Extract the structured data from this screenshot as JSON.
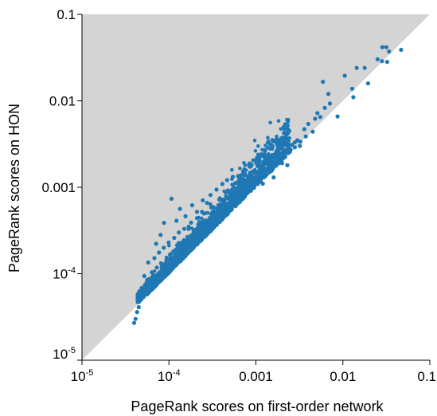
{
  "chart_data": {
    "type": "scatter",
    "xlabel": "PageRank scores on first-order network",
    "ylabel": "PageRank scores on HON",
    "xscale": "log",
    "yscale": "log",
    "xlim": [
      1e-05,
      0.1
    ],
    "ylim": [
      1e-05,
      0.1
    ],
    "grid": false,
    "legend": "none",
    "shaded_region": "y > x (upper-left triangle)",
    "colors": {
      "points": "#1f78b4",
      "shaded_region": "#d4d4d4",
      "axis": "#000000"
    },
    "x_ticks": [
      {
        "value": 1e-05,
        "base": "10",
        "exp": "-5"
      },
      {
        "value": 0.0001,
        "base": "10",
        "exp": "-4"
      },
      {
        "value": 0.001,
        "base": "0.001",
        "exp": ""
      },
      {
        "value": 0.01,
        "base": "0.01",
        "exp": ""
      },
      {
        "value": 0.1,
        "base": "0.1",
        "exp": ""
      }
    ],
    "y_ticks": [
      {
        "value": 1e-05,
        "base": "10",
        "exp": "-5"
      },
      {
        "value": 0.0001,
        "base": "10",
        "exp": "-4"
      },
      {
        "value": 0.001,
        "base": "0.001",
        "exp": ""
      },
      {
        "value": 0.01,
        "base": "0.01",
        "exp": ""
      },
      {
        "value": 0.1,
        "base": "0.1",
        "exp": ""
      }
    ],
    "points": [
      [
        0.0284,
        0.0417
      ],
      [
        0.0316,
        0.0417
      ],
      [
        0.0467,
        0.0389
      ],
      [
        0.0339,
        0.0372
      ],
      [
        0.0251,
        0.0302
      ],
      [
        0.0282,
        0.0288
      ],
      [
        0.0323,
        0.0282
      ],
      [
        0.0144,
        0.024
      ],
      [
        0.0178,
        0.024
      ],
      [
        0.0195,
        0.0159
      ],
      [
        0.0105,
        0.0195
      ],
      [
        0.0128,
        0.0138
      ],
      [
        0.0132,
        0.011
      ],
      [
        0.0059,
        0.0166
      ],
      [
        0.0068,
        0.012
      ],
      [
        0.0071,
        0.0093
      ],
      [
        0.0062,
        0.0083
      ],
      [
        0.0051,
        0.0072
      ],
      [
        0.0055,
        0.0065
      ],
      [
        0.0048,
        0.0062
      ],
      [
        0.004,
        0.0054
      ],
      [
        0.0045,
        0.0044
      ],
      [
        0.0087,
        0.0066
      ],
      [
        0.0036,
        0.0047
      ],
      [
        0.003,
        0.0035
      ],
      [
        0.0028,
        0.0033
      ],
      [
        0.0032,
        0.003
      ],
      [
        0.0026,
        0.0031
      ],
      [
        0.0025,
        0.0027
      ],
      [
        0.0022,
        0.0025
      ],
      [
        0.0019,
        0.0028
      ],
      [
        0.0021,
        0.0022
      ],
      [
        0.002,
        0.0019
      ],
      [
        0.0017,
        0.0021
      ],
      [
        0.0023,
        0.0018
      ],
      [
        0.0015,
        0.0016
      ],
      [
        0.0014,
        0.002
      ],
      [
        0.0016,
        0.0013
      ],
      [
        0.0012,
        0.0015
      ],
      [
        0.0011,
        0.0014
      ],
      [
        0.0012,
        0.0011
      ],
      [
        0.00101,
        0.00115
      ],
      [
        0.00096,
        0.00148
      ],
      [
        0.00088,
        0.00102
      ],
      [
        0.00082,
        0.00093
      ],
      [
        0.00079,
        0.00123
      ],
      [
        0.00071,
        0.00098
      ],
      [
        0.00065,
        0.00081
      ],
      [
        0.00061,
        0.00074
      ],
      [
        0.00058,
        0.00112
      ],
      [
        0.00053,
        0.00069
      ],
      [
        0.00049,
        0.00087
      ],
      [
        0.00045,
        0.00063
      ],
      [
        0.00042,
        0.00056
      ],
      [
        0.00038,
        0.00072
      ],
      [
        0.00035,
        0.00051
      ],
      [
        0.00033,
        0.00046
      ],
      [
        0.00031,
        0.0006
      ],
      [
        0.00029,
        0.00041
      ],
      [
        0.00026,
        0.00037
      ],
      [
        0.00024,
        0.00052
      ],
      [
        0.00022,
        0.00034
      ],
      [
        0.00021,
        0.00044
      ],
      [
        0.00019,
        0.00029
      ],
      [
        0.00018,
        0.00039
      ],
      [
        0.00017,
        0.00025
      ],
      [
        0.00015,
        0.00033
      ],
      [
        0.00014,
        0.00022
      ],
      [
        0.00013,
        0.0003
      ],
      [
        0.00012,
        0.00019
      ],
      [
        0.000115,
        0.00026
      ],
      [
        0.000105,
        0.00017
      ],
      [
        9.93e-05,
        0.00023
      ],
      [
        9.37e-05,
        0.000145
      ],
      [
        8.73e-05,
        0.0002
      ],
      [
        8.11e-05,
        0.000132
      ],
      [
        7.7e-05,
        0.000176
      ],
      [
        7.26e-05,
        0.000118
      ],
      [
        6.81e-05,
        0.000152
      ],
      [
        6.35e-05,
        0.000104
      ],
      [
        5.9e-05,
        8.7e-05
      ],
      [
        5.78e-05,
        0.000135
      ],
      [
        5.49e-05,
        7.5e-05
      ],
      [
        5.21e-05,
        9.4e-05
      ],
      [
        5.02e-05,
        6.4e-05
      ],
      [
        4.83e-05,
        5.5e-05
      ],
      [
        4.65e-05,
        4.9e-05
      ],
      [
        4.49e-05,
        4.1e-05
      ],
      [
        4.3e-05,
        3.6e-05
      ],
      [
        4.13e-05,
        3e-05
      ],
      [
        3.98e-05,
        2.7e-05
      ],
      [
        0.000107,
        0.000737
      ],
      [
        8.79e-05,
        0.000388
      ],
      [
        7.12e-05,
        0.000222
      ],
      [
        8.03e-05,
        0.000281
      ],
      [
        0.000134,
        0.000563
      ],
      [
        0.000155,
        0.000463
      ],
      [
        0.000122,
        0.00041
      ],
      [
        0.000168,
        0.00035
      ],
      [
        0.000185,
        0.00062
      ],
      [
        0.00021,
        0.00052
      ],
      [
        0.000245,
        0.000706
      ],
      [
        0.000274,
        0.00066
      ],
      [
        0.000301,
        0.000814
      ],
      [
        0.000352,
        0.00094
      ],
      [
        0.000412,
        0.00109
      ],
      [
        0.000466,
        0.00121
      ],
      [
        0.000543,
        0.00132
      ],
      [
        0.000624,
        0.00135
      ],
      [
        0.000713,
        0.00153
      ],
      [
        0.000835,
        0.00181
      ],
      [
        0.00093,
        0.00205
      ],
      [
        0.00106,
        0.00238
      ],
      [
        0.00127,
        0.00264
      ],
      [
        0.00145,
        0.00315
      ],
      [
        0.000262,
        0.000286
      ],
      [
        0.000318,
        0.000332
      ],
      [
        0.00038,
        0.000402
      ],
      [
        0.000452,
        0.000476
      ],
      [
        0.000521,
        0.00056
      ],
      [
        0.0006,
        0.000646
      ],
      [
        0.000702,
        0.000749
      ],
      [
        0.000805,
        0.000864
      ],
      [
        0.000906,
        0.000981
      ],
      [
        0.00101,
        0.0011
      ],
      [
        0.00114,
        0.00126
      ],
      [
        0.00131,
        0.00138
      ],
      [
        0.00152,
        0.00156
      ],
      [
        0.00172,
        0.00179
      ],
      [
        0.00197,
        0.00202
      ],
      [
        0.00217,
        0.00226
      ],
      [
        0.00247,
        0.00259
      ],
      [
        0.0028,
        0.0029
      ],
      [
        0.00325,
        0.00337
      ],
      [
        0.00375,
        0.00387
      ],
      [
        6.6e-05,
        6.83e-05
      ],
      [
        7.25e-05,
        7.6e-05
      ],
      [
        7.92e-05,
        8.3e-05
      ],
      [
        8.71e-05,
        9.15e-05
      ],
      [
        9.52e-05,
        0.000101
      ],
      [
        0.000104,
        0.00011
      ],
      [
        0.000113,
        0.000119
      ],
      [
        0.000124,
        0.000131
      ],
      [
        0.000136,
        0.000143
      ],
      [
        0.000148,
        0.000157
      ],
      [
        0.000163,
        0.000172
      ],
      [
        0.000177,
        0.000188
      ],
      [
        0.000193,
        0.000205
      ],
      [
        0.000212,
        0.000224
      ],
      [
        0.000232,
        0.000246
      ],
      [
        4.52e-05,
        4.72e-05
      ],
      [
        4.84e-05,
        5.08e-05
      ],
      [
        5.12e-05,
        5.42e-05
      ],
      [
        5.43e-05,
        5.78e-05
      ],
      [
        5.77e-05,
        6.15e-05
      ],
      [
        6.12e-05,
        6.57e-05
      ],
      [
        6.52e-05,
        7.02e-05
      ],
      [
        7.03e-05,
        7.52e-05
      ],
      [
        7.54e-05,
        8.05e-05
      ],
      [
        8.08e-05,
        8.6e-05
      ]
    ],
    "cluster": {
      "center": [
        0.000105,
        0.000108
      ],
      "note": "dense cloud of points between 4e-5 and 1e-3 along and above the diagonal"
    }
  }
}
